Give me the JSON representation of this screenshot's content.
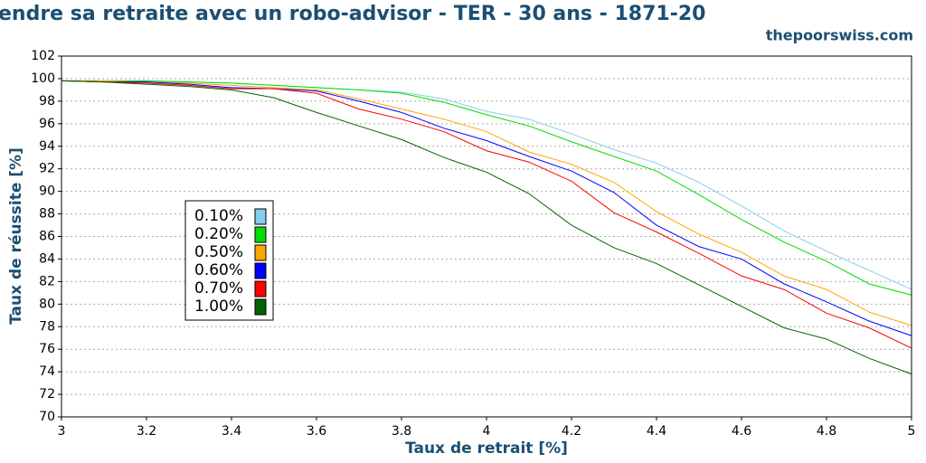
{
  "chart_data": {
    "type": "line",
    "title": "endre sa retraite avec un robo-advisor - TER - 30 ans - 1871-20",
    "subtitle": "thepoorswiss.com",
    "x_label": "Taux de retrait [%]",
    "y_label": "Taux de réussite [%]",
    "x": [
      3.0,
      3.1,
      3.2,
      3.3,
      3.4,
      3.5,
      3.6,
      3.7,
      3.8,
      3.9,
      4.0,
      4.1,
      4.2,
      4.3,
      4.4,
      4.5,
      4.6,
      4.7,
      4.8,
      4.9,
      5.0
    ],
    "series": [
      {
        "name": "0.10%",
        "color": "#87ceeb",
        "values": [
          99.8,
          99.8,
          99.8,
          99.7,
          99.6,
          99.4,
          99.2,
          99.0,
          98.8,
          98.2,
          97.1,
          96.4,
          95.1,
          93.7,
          92.5,
          90.8,
          88.7,
          86.5,
          84.7,
          83.0,
          81.3
        ]
      },
      {
        "name": "0.20%",
        "color": "#00dd00",
        "values": [
          99.8,
          99.8,
          99.8,
          99.7,
          99.6,
          99.4,
          99.2,
          99.0,
          98.7,
          97.9,
          96.8,
          95.8,
          94.4,
          93.1,
          91.8,
          89.7,
          87.5,
          85.5,
          83.8,
          81.8,
          80.8
        ]
      },
      {
        "name": "0.50%",
        "color": "#ffa500",
        "values": [
          99.8,
          99.8,
          99.7,
          99.6,
          99.4,
          99.2,
          99.0,
          98.2,
          97.3,
          96.4,
          95.3,
          93.5,
          92.4,
          90.8,
          88.2,
          86.2,
          84.6,
          82.5,
          81.3,
          79.3,
          78.1
        ]
      },
      {
        "name": "0.60%",
        "color": "#0000ff",
        "values": [
          99.8,
          99.7,
          99.7,
          99.5,
          99.2,
          99.1,
          98.9,
          98.0,
          97.0,
          95.6,
          94.5,
          93.1,
          91.8,
          89.9,
          87.0,
          85.1,
          84.0,
          81.8,
          80.2,
          78.5,
          77.2
        ]
      },
      {
        "name": "0.70%",
        "color": "#ff0000",
        "values": [
          99.8,
          99.7,
          99.6,
          99.4,
          99.1,
          99.1,
          98.7,
          97.3,
          96.4,
          95.3,
          93.6,
          92.6,
          90.9,
          88.1,
          86.4,
          84.5,
          82.5,
          81.3,
          79.2,
          77.9,
          76.1
        ]
      },
      {
        "name": "1.00%",
        "color": "#006400",
        "values": [
          99.8,
          99.7,
          99.5,
          99.3,
          99.0,
          98.3,
          97.0,
          95.8,
          94.6,
          93.0,
          91.7,
          89.8,
          87.0,
          85.0,
          83.6,
          81.7,
          79.8,
          77.9,
          76.9,
          75.2,
          73.8
        ]
      }
    ],
    "xlim": [
      3,
      5
    ],
    "xticks": [
      3,
      3.2,
      3.4,
      3.6,
      3.8,
      4,
      4.2,
      4.4,
      4.6,
      4.8,
      5
    ],
    "ylim": [
      70,
      102
    ],
    "yticks": [
      70,
      72,
      74,
      76,
      78,
      80,
      82,
      84,
      86,
      88,
      90,
      92,
      94,
      96,
      98,
      100,
      102
    ],
    "grid": true
  }
}
